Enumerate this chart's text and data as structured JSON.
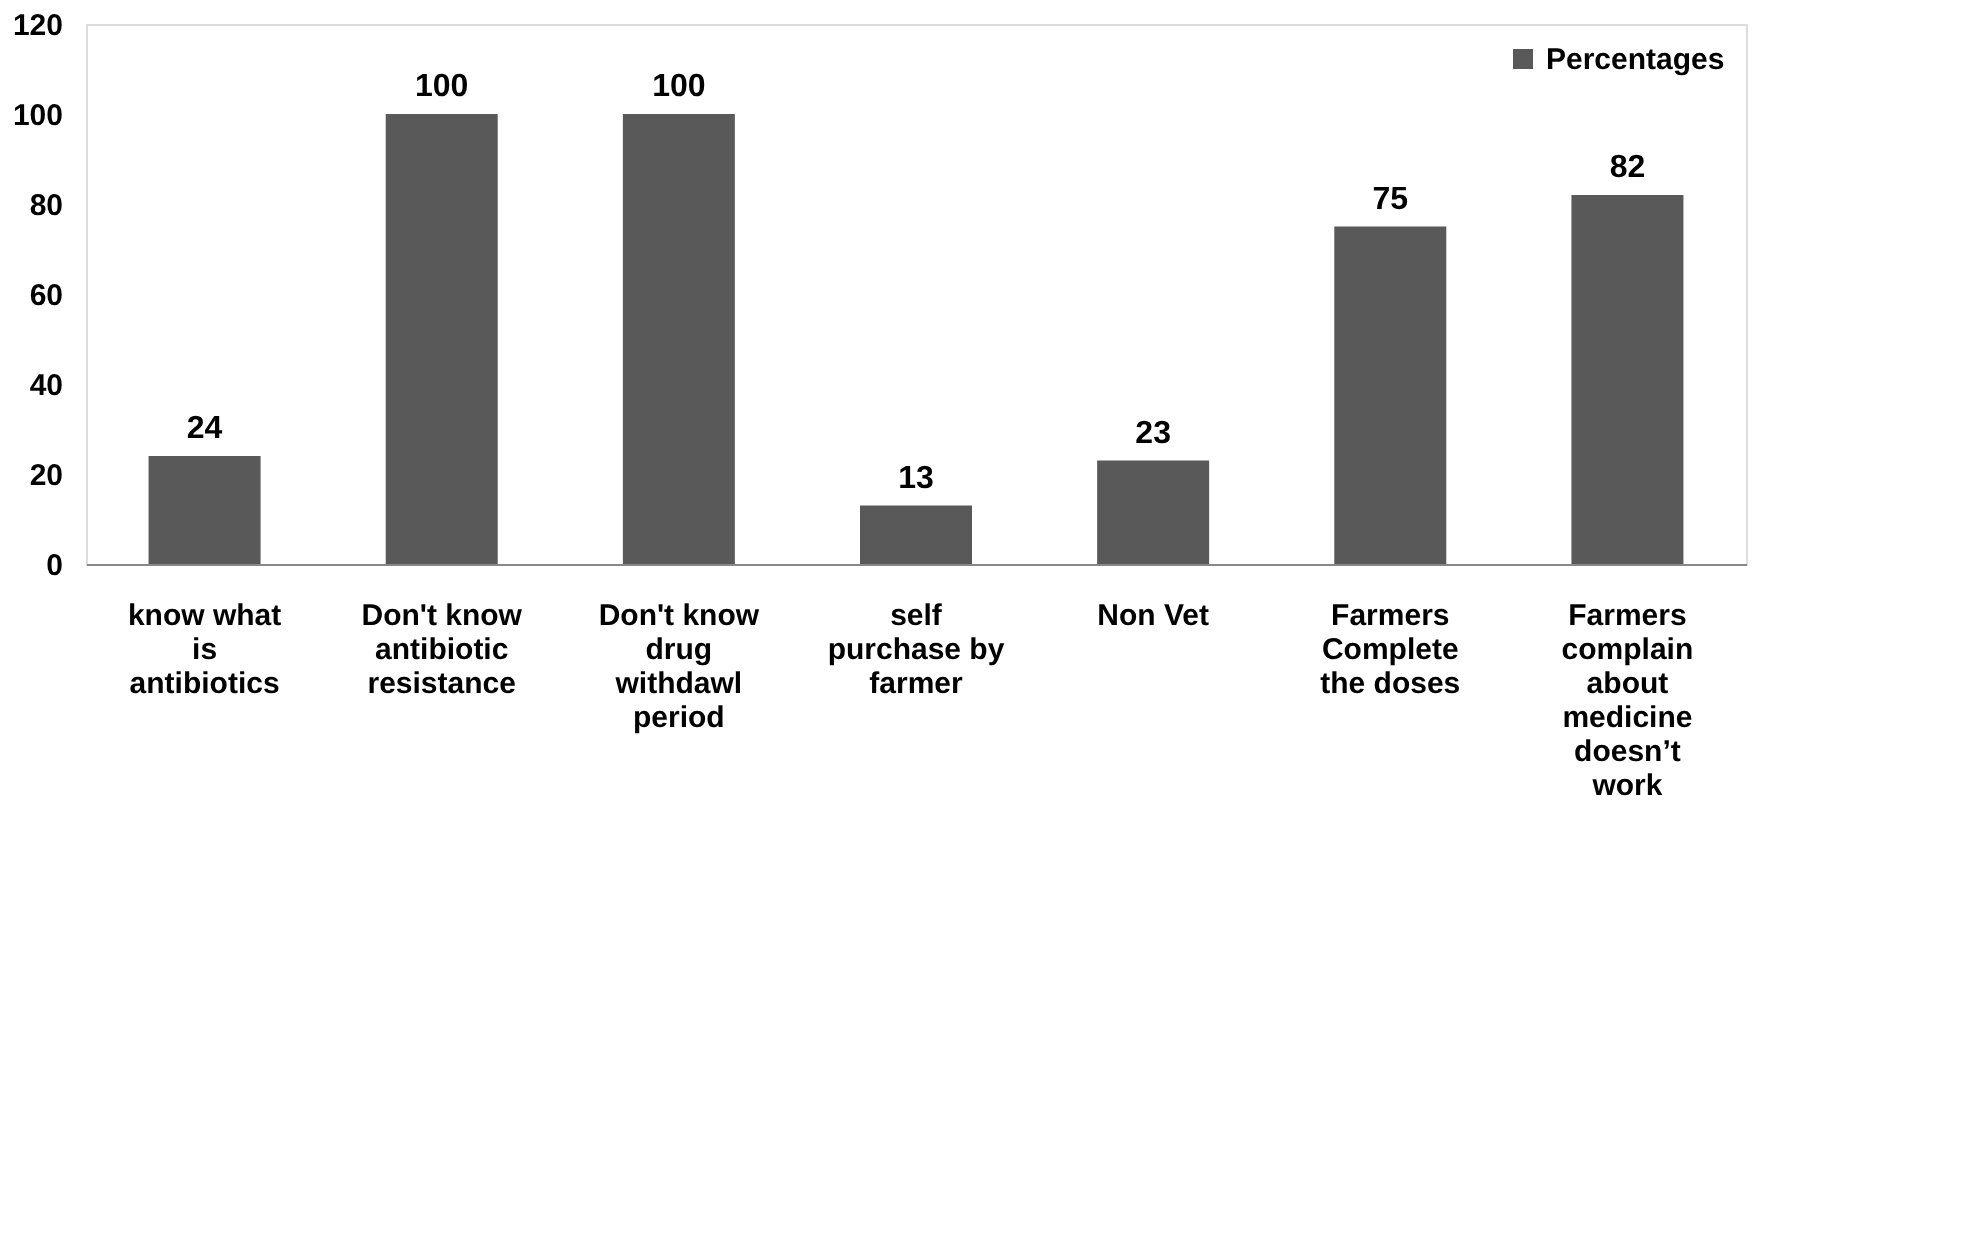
{
  "chart_data": {
    "type": "bar",
    "categories": [
      "know what is antibiotics",
      "Don't know antibiotic resistance",
      "Don't know drug withdawl period",
      "self purchase by farmer",
      "Non Vet",
      "Farmers Complete the doses",
      "Farmers complain about medicine doesn’t work"
    ],
    "series": [
      {
        "name": "Percentages",
        "color": "#595959",
        "values": [
          24,
          100,
          100,
          13,
          23,
          75,
          82
        ]
      }
    ],
    "ylim": [
      0,
      120
    ],
    "yticks": [
      0,
      20,
      40,
      60,
      80,
      100,
      120
    ],
    "data_labels": true,
    "grid": false,
    "legend": "top right"
  }
}
